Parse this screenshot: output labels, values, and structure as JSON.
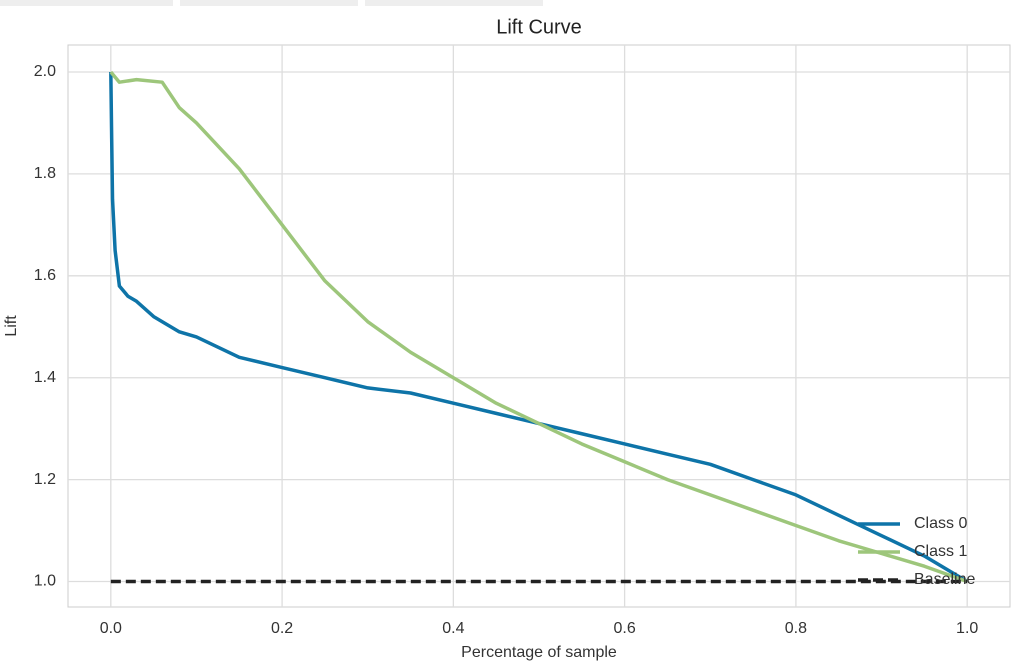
{
  "chart_data": {
    "type": "line",
    "title": "Lift Curve",
    "xlabel": "Percentage of sample",
    "ylabel": "Lift",
    "xlim": [
      -0.05,
      1.05
    ],
    "ylim": [
      0.95,
      2.053
    ],
    "xticks": [
      {
        "value": 0,
        "label": "0.0"
      },
      {
        "value": 0.2,
        "label": "0.2"
      },
      {
        "value": 0.4,
        "label": "0.4"
      },
      {
        "value": 0.6,
        "label": "0.6"
      },
      {
        "value": 0.8,
        "label": "0.8"
      },
      {
        "value": 1,
        "label": "1.0"
      }
    ],
    "yticks": [
      {
        "value": 1,
        "label": "1.0"
      },
      {
        "value": 1.2,
        "label": "1.2"
      },
      {
        "value": 1.4,
        "label": "1.4"
      },
      {
        "value": 1.6,
        "label": "1.6"
      },
      {
        "value": 1.8,
        "label": "1.8"
      },
      {
        "value": 2,
        "label": "2.0"
      }
    ],
    "grid": true,
    "legend": "lower right",
    "series": [
      {
        "name": "Class 0",
        "color": "#0e74a8",
        "dashed": false,
        "x": [
          0,
          0.001,
          0.002,
          0.005,
          0.01,
          0.02,
          0.03,
          0.05,
          0.08,
          0.1,
          0.15,
          0.2,
          0.25,
          0.3,
          0.35,
          0.4,
          0.45,
          0.5,
          0.55,
          0.6,
          0.65,
          0.7,
          0.75,
          0.8,
          0.85,
          0.9,
          0.95,
          1.0
        ],
        "values": [
          2.0,
          1.87,
          1.75,
          1.65,
          1.58,
          1.56,
          1.55,
          1.52,
          1.49,
          1.48,
          1.44,
          1.42,
          1.4,
          1.38,
          1.37,
          1.35,
          1.33,
          1.31,
          1.29,
          1.27,
          1.25,
          1.23,
          1.2,
          1.17,
          1.13,
          1.09,
          1.05,
          1.0
        ]
      },
      {
        "name": "Class 1",
        "color": "#9dc67b",
        "dashed": false,
        "x": [
          0,
          0.005,
          0.01,
          0.03,
          0.06,
          0.08,
          0.1,
          0.15,
          0.2,
          0.25,
          0.3,
          0.35,
          0.4,
          0.45,
          0.5,
          0.55,
          0.6,
          0.65,
          0.7,
          0.75,
          0.8,
          0.85,
          0.9,
          0.95,
          1.0
        ],
        "values": [
          2.0,
          1.99,
          1.98,
          1.985,
          1.98,
          1.93,
          1.9,
          1.81,
          1.7,
          1.59,
          1.51,
          1.45,
          1.4,
          1.35,
          1.31,
          1.27,
          1.235,
          1.2,
          1.17,
          1.14,
          1.11,
          1.08,
          1.055,
          1.03,
          1.0
        ]
      },
      {
        "name": "Baseline",
        "color": "#222222",
        "dashed": true,
        "x": [
          0,
          1
        ],
        "values": [
          1,
          1
        ]
      }
    ]
  }
}
